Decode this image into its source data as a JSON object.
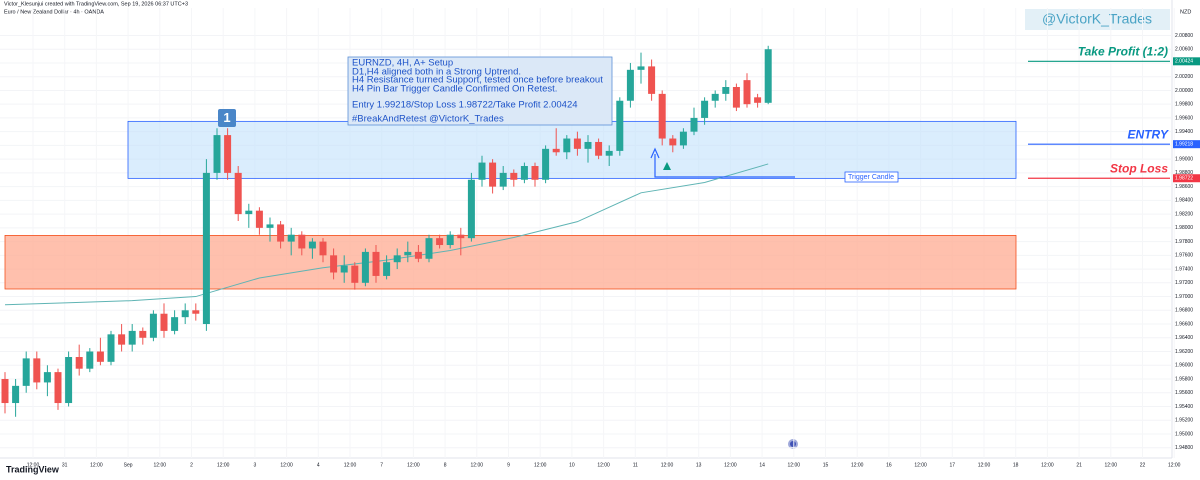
{
  "chart_data": {
    "type": "candlestick",
    "header": "Victor_Klesunjui created with TradingView.com, Sep 19, 2026 06:37 UTC+3",
    "symbol": "Euro / New Zealand Dollar · 4h · OANDA",
    "currency": "NZD",
    "logo": "TradingView",
    "watermark": "@VictorK_Trades",
    "badge": "1",
    "trigger_label": "Trigger Candle",
    "annotation": [
      "EURNZD, 4H, A+ Setup",
      "D1,H4 aligned both in a Strong Uptrend.",
      "H4 Resistance turned Support, tested once before breakout",
      "H4 Pin Bar Trigger Candle Confirmed On Retest.",
      "Entry 1.99218/Stop Loss 1.98722/Take Profit 2.00424",
      "#BreakAndRetest @VictorK_Trades"
    ],
    "ylim": [
      1.9465,
      2.012
    ],
    "yticks": [
      {
        "value": 1.948,
        "label": "1.94800"
      },
      {
        "value": 1.95,
        "label": "1.95000"
      },
      {
        "value": 1.952,
        "label": "1.95200"
      },
      {
        "value": 1.954,
        "label": "1.95400"
      },
      {
        "value": 1.956,
        "label": "1.95600"
      },
      {
        "value": 1.958,
        "label": "1.95800"
      },
      {
        "value": 1.96,
        "label": "1.96000"
      },
      {
        "value": 1.962,
        "label": "1.96200"
      },
      {
        "value": 1.964,
        "label": "1.96400"
      },
      {
        "value": 1.966,
        "label": "1.96600"
      },
      {
        "value": 1.968,
        "label": "1.96800"
      },
      {
        "value": 1.97,
        "label": "1.97000"
      },
      {
        "value": 1.972,
        "label": "1.97200"
      },
      {
        "value": 1.974,
        "label": "1.97400"
      },
      {
        "value": 1.976,
        "label": "1.97600"
      },
      {
        "value": 1.978,
        "label": "1.97800"
      },
      {
        "value": 1.98,
        "label": "1.98000"
      },
      {
        "value": 1.982,
        "label": "1.98200"
      },
      {
        "value": 1.984,
        "label": "1.98400"
      },
      {
        "value": 1.986,
        "label": "1.98600"
      },
      {
        "value": 1.988,
        "label": "1.98800"
      },
      {
        "value": 1.99,
        "label": "1.99000"
      },
      {
        "value": 1.992,
        "label": "1.99200"
      },
      {
        "value": 1.994,
        "label": "1.99400"
      },
      {
        "value": 1.996,
        "label": "1.99600"
      },
      {
        "value": 1.998,
        "label": "1.99800"
      },
      {
        "value": 2.0,
        "label": "2.00000"
      },
      {
        "value": 2.002,
        "label": "2.00200"
      },
      {
        "value": 2.004,
        "label": "2.00400"
      },
      {
        "value": 2.006,
        "label": "2.00600"
      },
      {
        "value": 2.008,
        "label": "2.00800"
      }
    ],
    "grid": true,
    "up_color": "#26a69a",
    "down_color": "#ef5350",
    "ma_color": "#5fb4b4",
    "xtick_labels": [
      "12:00",
      "31",
      "12:00",
      "Sep",
      "12:00",
      "2",
      "12:00",
      "3",
      "12:00",
      "4",
      "12:00",
      "7",
      "12:00",
      "8",
      "12:00",
      "9",
      "12:00",
      "10",
      "12:00",
      "11",
      "12:00",
      "13",
      "12:00",
      "14",
      "12:00",
      "15",
      "12:00",
      "16",
      "12:00",
      "17",
      "12:00",
      "18",
      "12:00",
      "21",
      "12:00",
      "22",
      "12:00",
      "23"
    ],
    "open": [
      1.958,
      1.9545,
      1.957,
      1.961,
      1.9575,
      1.959,
      1.9545,
      1.9612,
      1.9595,
      1.962,
      1.9605,
      1.9645,
      1.963,
      1.965,
      1.964,
      1.9675,
      1.965,
      1.967,
      1.968,
      1.966,
      1.988,
      1.9935,
      1.988,
      1.982,
      1.9825,
      1.98,
      1.9805,
      1.978,
      1.979,
      1.977,
      1.978,
      1.976,
      1.9735,
      1.9745,
      1.972,
      1.9765,
      1.973,
      1.975,
      1.976,
      1.9765,
      1.9755,
      1.9785,
      1.9775,
      1.979,
      1.9785,
      1.987,
      1.9895,
      1.986,
      1.988,
      1.987,
      1.989,
      1.987,
      1.9915,
      1.991,
      1.993,
      1.9915,
      1.9925,
      1.9905,
      1.9912,
      1.9985,
      2.003,
      2.0035,
      1.9995,
      1.993,
      1.992,
      1.994,
      1.996,
      1.9985,
      1.9995,
      2.0005,
      2.0015,
      1.999,
      1.9982
    ],
    "high": [
      1.959,
      1.958,
      1.962,
      1.962,
      1.96,
      1.9595,
      1.962,
      1.963,
      1.9625,
      1.964,
      1.965,
      1.966,
      1.966,
      1.9655,
      1.968,
      1.969,
      1.968,
      1.969,
      1.969,
      1.99,
      1.9945,
      1.9945,
      1.989,
      1.9835,
      1.983,
      1.9815,
      1.981,
      1.98,
      1.9795,
      1.9785,
      1.9785,
      1.977,
      1.976,
      1.975,
      1.977,
      1.9775,
      1.976,
      1.977,
      1.978,
      1.9775,
      1.979,
      1.979,
      1.9795,
      1.98,
      1.988,
      1.9905,
      1.99,
      1.989,
      1.9885,
      1.9895,
      1.9895,
      1.992,
      1.9945,
      1.9935,
      1.994,
      1.9935,
      1.993,
      1.992,
      1.999,
      2.004,
      2.0055,
      2.0045,
      2.0,
      1.9935,
      1.9945,
      1.9975,
      1.999,
      2.0,
      2.0015,
      2.001,
      2.0025,
      1.9995,
      2.0065
    ],
    "low": [
      1.953,
      1.9525,
      1.956,
      1.9565,
      1.9555,
      1.9535,
      1.954,
      1.9585,
      1.959,
      1.96,
      1.96,
      1.962,
      1.962,
      1.963,
      1.9635,
      1.964,
      1.9645,
      1.966,
      1.9665,
      1.965,
      1.987,
      1.987,
      1.981,
      1.98,
      1.979,
      1.978,
      1.977,
      1.976,
      1.976,
      1.9755,
      1.975,
      1.9725,
      1.972,
      1.971,
      1.9715,
      1.972,
      1.9725,
      1.974,
      1.975,
      1.975,
      1.975,
      1.977,
      1.977,
      1.976,
      1.978,
      1.986,
      1.985,
      1.9855,
      1.986,
      1.9865,
      1.986,
      1.9865,
      1.9905,
      1.99,
      1.9905,
      1.9895,
      1.99,
      1.989,
      1.9905,
      1.9975,
      2.001,
      1.9985,
      1.992,
      1.991,
      1.9915,
      1.9935,
      1.995,
      1.9975,
      1.9985,
      1.997,
      1.9975,
      1.9975,
      1.998
    ],
    "close": [
      1.9545,
      1.957,
      1.961,
      1.9575,
      1.959,
      1.9545,
      1.9612,
      1.9595,
      1.962,
      1.9605,
      1.9645,
      1.963,
      1.965,
      1.964,
      1.9675,
      1.965,
      1.967,
      1.968,
      1.9675,
      1.988,
      1.9935,
      1.988,
      1.982,
      1.9825,
      1.98,
      1.9805,
      1.978,
      1.979,
      1.977,
      1.978,
      1.976,
      1.9735,
      1.9745,
      1.972,
      1.9765,
      1.973,
      1.975,
      1.976,
      1.9765,
      1.9755,
      1.9785,
      1.9775,
      1.979,
      1.9785,
      1.987,
      1.9895,
      1.986,
      1.988,
      1.987,
      1.989,
      1.987,
      1.9915,
      1.991,
      1.993,
      1.9915,
      1.9925,
      1.9905,
      1.9912,
      1.9985,
      2.003,
      2.0035,
      1.9995,
      1.993,
      1.992,
      1.994,
      1.996,
      1.9985,
      1.9995,
      2.0005,
      1.9975,
      1.998,
      1.9982,
      2.006
    ],
    "ma": {
      "x": [
        0,
        6,
        12,
        18,
        24,
        30,
        36,
        42,
        48,
        54,
        60,
        66,
        72
      ],
      "values": [
        1.9688,
        1.9691,
        1.9694,
        1.97,
        1.9727,
        1.9742,
        1.9753,
        1.9767,
        1.9786,
        1.9809,
        1.9851,
        1.9866,
        1.9893
      ]
    },
    "zones": [
      {
        "top": 1.9955,
        "bottom": 1.9872,
        "color": "#bbdefb"
      },
      {
        "top": 1.9789,
        "bottom": 1.9711,
        "color": "#ffab91"
      }
    ],
    "levels": [
      {
        "name": "Take Profit (1:2)",
        "value": 2.00424,
        "color": "#089981"
      },
      {
        "name": "ENTRY",
        "value": 1.99218,
        "color": "#2962ff"
      },
      {
        "name": "Stop Loss",
        "value": 1.98722,
        "color": "#f23645"
      }
    ]
  }
}
